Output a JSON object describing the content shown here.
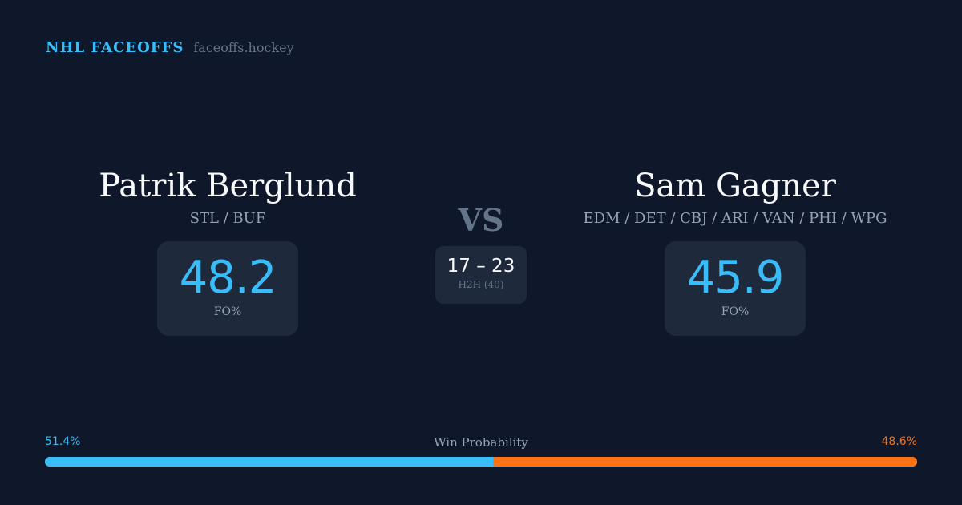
{
  "brand": {
    "name": "NHL FACEOFFS",
    "url": "faceoffs.hockey"
  },
  "player1": {
    "name": "Patrik Berglund",
    "teams": "STL / BUF",
    "fo_pct": "48.2",
    "fo_label": "FO%"
  },
  "player2": {
    "name": "Sam Gagner",
    "teams": "EDM / DET / CBJ / ARI / VAN / PHI / WPG",
    "fo_pct": "45.9",
    "fo_label": "FO%"
  },
  "vs": "VS",
  "h2h": {
    "score": "17 – 23",
    "label": "H2H (40)"
  },
  "win_probability": {
    "title": "Win Probability",
    "left": "51.4%",
    "right": "48.6%",
    "left_value": 51.4,
    "right_value": 48.6
  },
  "colors": {
    "player1": "#38bdf8",
    "player2": "#f97316",
    "background": "#0f172a"
  }
}
